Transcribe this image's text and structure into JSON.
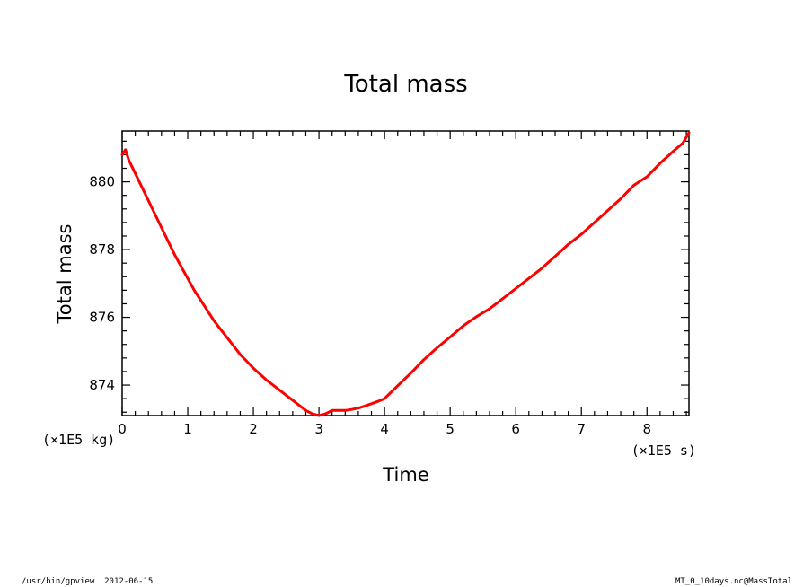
{
  "chart_data": {
    "type": "line",
    "title": "Total mass",
    "xlabel": "Time",
    "ylabel": "Total mass",
    "x_unit": "(×1E5 s)",
    "y_unit": "(×1E5 kg)",
    "xlim": [
      0,
      8.64
    ],
    "ylim": [
      873.1,
      881.5
    ],
    "x_ticks": [
      0,
      1,
      2,
      3,
      4,
      5,
      6,
      7,
      8
    ],
    "y_ticks": [
      874,
      876,
      878,
      880
    ],
    "grid": false,
    "line_color": "#ff0000",
    "series": [
      {
        "x": [
          0,
          0.05,
          0.1,
          0.2,
          0.3,
          0.4,
          0.5,
          0.6,
          0.7,
          0.8,
          0.9,
          1.0,
          1.1,
          1.2,
          1.3,
          1.4,
          1.5,
          1.6,
          1.7,
          1.8,
          1.9,
          2.0,
          2.2,
          2.4,
          2.5,
          2.6,
          2.7,
          2.8,
          2.9,
          3.0,
          3.1,
          3.2,
          3.3,
          3.4,
          3.5,
          3.6,
          3.7,
          3.8,
          3.9,
          4.0,
          4.2,
          4.4,
          4.6,
          4.8,
          5.0,
          5.2,
          5.4,
          5.6,
          5.8,
          6.0,
          6.2,
          6.4,
          6.6,
          6.8,
          7.0,
          7.2,
          7.4,
          7.6,
          7.8,
          8.0,
          8.2,
          8.4,
          8.55,
          8.64
        ],
        "y": [
          880.8,
          880.95,
          880.65,
          880.25,
          879.85,
          879.45,
          879.05,
          878.65,
          878.25,
          877.85,
          877.5,
          877.15,
          876.8,
          876.5,
          876.2,
          875.9,
          875.65,
          875.4,
          875.15,
          874.9,
          874.7,
          874.5,
          874.15,
          873.85,
          873.7,
          873.55,
          873.4,
          873.25,
          873.15,
          873.1,
          873.15,
          873.25,
          873.25,
          873.25,
          873.28,
          873.32,
          873.38,
          873.45,
          873.52,
          873.6,
          873.98,
          874.35,
          874.75,
          875.1,
          875.42,
          875.75,
          876.02,
          876.25,
          876.55,
          876.85,
          877.15,
          877.45,
          877.8,
          878.15,
          878.45,
          878.8,
          879.15,
          879.5,
          879.9,
          880.15,
          880.55,
          880.9,
          881.15,
          881.45
        ]
      }
    ]
  },
  "footer": {
    "left": "/usr/bin/gpview  2012-06-15",
    "right": "MT_0_10days.nc@MassTotal"
  }
}
